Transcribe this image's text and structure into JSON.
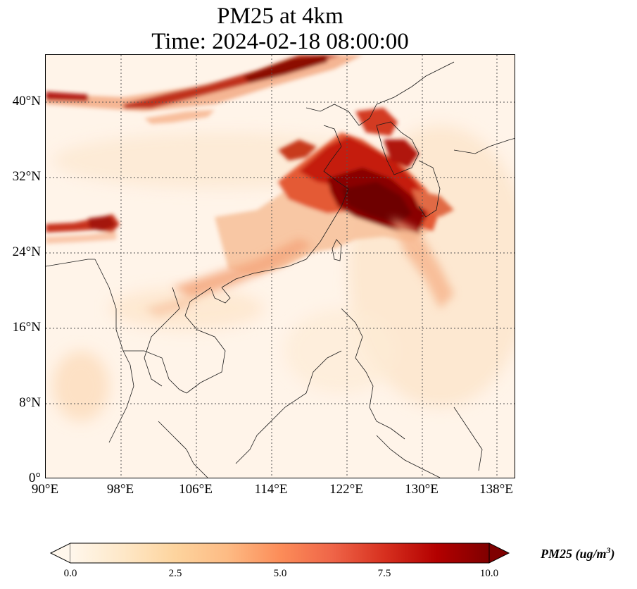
{
  "title": {
    "line1": "PM25 at 4km",
    "line2": "Time: 2024-02-18 08:00:00"
  },
  "map": {
    "extent": {
      "lon_min": 90,
      "lon_max": 140,
      "lat_min": 0,
      "lat_max": 45
    },
    "projection": "PlateCarree",
    "gridlines": "dotted",
    "lat_ticks": [
      {
        "value": 0,
        "label": "0°"
      },
      {
        "value": 8,
        "label": "8°N"
      },
      {
        "value": 16,
        "label": "16°N"
      },
      {
        "value": 24,
        "label": "24°N"
      },
      {
        "value": 32,
        "label": "32°N"
      },
      {
        "value": 40,
        "label": "40°N"
      }
    ],
    "lon_ticks": [
      {
        "value": 90,
        "label": "90°E"
      },
      {
        "value": 98,
        "label": "98°E"
      },
      {
        "value": 106,
        "label": "106°E"
      },
      {
        "value": 114,
        "label": "114°E"
      },
      {
        "value": 122,
        "label": "122°E"
      },
      {
        "value": 130,
        "label": "130°E"
      },
      {
        "value": 138,
        "label": "138°E"
      }
    ],
    "colormap": "OrRd",
    "features": [
      {
        "name": "northern-plume",
        "description": "dense band across northern China"
      },
      {
        "name": "east-china-sea-plume",
        "max_value": 10
      },
      {
        "name": "himalaya-plume"
      }
    ]
  },
  "colorbar": {
    "label": "PM25 (ug/m",
    "label_sup": "3",
    "label_close": ")",
    "min": 0.0,
    "max": 10.0,
    "extend": "both",
    "ticks": [
      {
        "value": 0.0,
        "label": "0.0"
      },
      {
        "value": 2.5,
        "label": "2.5"
      },
      {
        "value": 5.0,
        "label": "5.0"
      },
      {
        "value": 7.5,
        "label": "7.5"
      },
      {
        "value": 10.0,
        "label": "10.0"
      }
    ],
    "colors": [
      "#fff7ec",
      "#fee8c8",
      "#fdd49e",
      "#fdbb84",
      "#fc8d59",
      "#ef6548",
      "#d7301f",
      "#b30000",
      "#7f0000"
    ]
  }
}
